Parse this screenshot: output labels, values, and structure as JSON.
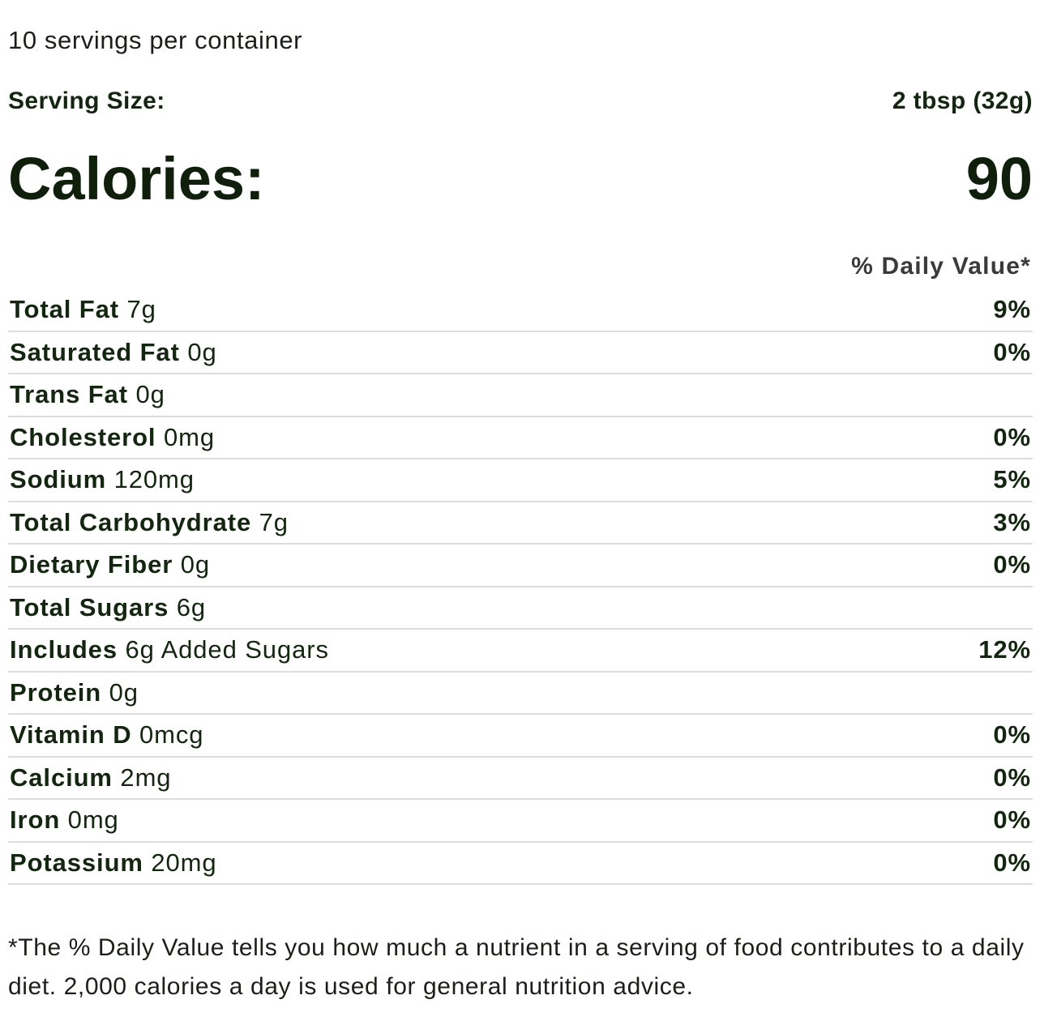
{
  "servings_per_container": "10 servings per container",
  "serving_size": {
    "label": "Serving Size:",
    "value": "2 tbsp (32g)"
  },
  "calories": {
    "label": "Calories:",
    "value": "90"
  },
  "daily_value_header": "% Daily Value*",
  "nutrients": [
    {
      "name": "Total Fat",
      "amount": "7g",
      "dv": "9%"
    },
    {
      "name": "Saturated Fat",
      "amount": "0g",
      "dv": "0%"
    },
    {
      "name": "Trans Fat",
      "amount": "0g",
      "dv": ""
    },
    {
      "name": "Cholesterol",
      "amount": "0mg",
      "dv": "0%"
    },
    {
      "name": "Sodium",
      "amount": "120mg",
      "dv": "5%"
    },
    {
      "name": "Total Carbohydrate",
      "amount": "7g",
      "dv": "3%"
    },
    {
      "name": "Dietary Fiber",
      "amount": "0g",
      "dv": "0%"
    },
    {
      "name": "Total Sugars",
      "amount": "6g",
      "dv": ""
    },
    {
      "name": "Includes",
      "amount": "6g Added Sugars",
      "dv": "12%"
    },
    {
      "name": "Protein",
      "amount": "0g",
      "dv": ""
    },
    {
      "name": "Vitamin D",
      "amount": "0mcg",
      "dv": "0%"
    },
    {
      "name": "Calcium",
      "amount": "2mg",
      "dv": "0%"
    },
    {
      "name": "Iron",
      "amount": "0mg",
      "dv": "0%"
    },
    {
      "name": "Potassium",
      "amount": "20mg",
      "dv": "0%"
    }
  ],
  "footnote": "*The % Daily Value tells you how much a nutrient in a serving of food contributes to a daily diet. 2,000 calories a day is used for general nutrition advice.",
  "colors": {
    "text": "#13260f",
    "divider": "#dcdcdc",
    "header_gray": "#3a3a3a"
  }
}
